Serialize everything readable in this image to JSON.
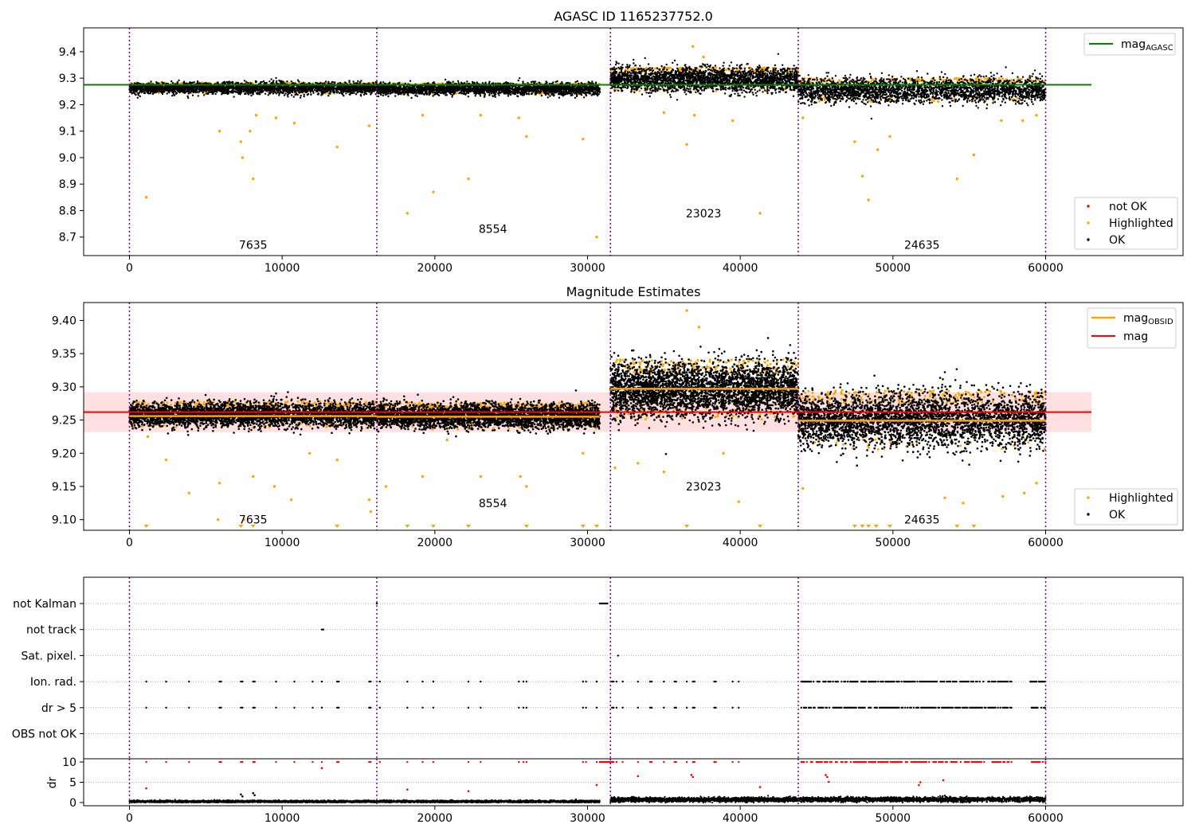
{
  "chart_data": [
    {
      "type": "scatter",
      "title": "AGASC ID 1165237752.0",
      "xlabel": "",
      "ylabel": "",
      "xlim": [
        -3000,
        69000
      ],
      "ylim": [
        8.63,
        9.49
      ],
      "x_ticks": [
        0,
        10000,
        20000,
        30000,
        40000,
        50000,
        60000
      ],
      "x_tick_labels": [
        "0",
        "10000",
        "20000",
        "30000",
        "40000",
        "50000",
        "60000"
      ],
      "y_ticks": [
        8.7,
        8.8,
        8.9,
        9.0,
        9.1,
        9.2,
        9.3,
        9.4
      ],
      "y_tick_labels": [
        "8.7",
        "8.8",
        "8.9",
        "9.0",
        "9.1",
        "9.2",
        "9.3",
        "9.4"
      ],
      "boundaries": [
        0,
        16200,
        31500,
        43800,
        60000
      ],
      "segments": [
        {
          "label": "7635",
          "x": [
            0,
            16200
          ],
          "center": 9.262,
          "spread": 0.024,
          "label_at": [
            8100,
            8.67
          ]
        },
        {
          "label": "8554",
          "x": [
            16200,
            30800
          ],
          "center": 9.259,
          "spread": 0.024,
          "label_at": [
            23800,
            8.73
          ]
        },
        {
          "label": "23023",
          "x": [
            31500,
            43800
          ],
          "center": 9.295,
          "spread": 0.05,
          "label_at": [
            37600,
            8.79
          ]
        },
        {
          "label": "24635",
          "x": [
            43800,
            60000
          ],
          "center": 9.255,
          "spread": 0.05,
          "label_at": [
            51900,
            8.67
          ]
        }
      ],
      "reference_line": {
        "name": "mag_AGASC",
        "y": 9.275,
        "x": [
          -3000,
          63000
        ],
        "color": "#008000"
      },
      "highlighted_points": [
        [
          1100,
          8.85
        ],
        [
          5900,
          9.1
        ],
        [
          7300,
          9.06
        ],
        [
          7400,
          9.0
        ],
        [
          8100,
          8.92
        ],
        [
          7900,
          9.1
        ],
        [
          8300,
          9.16
        ],
        [
          9600,
          9.15
        ],
        [
          10800,
          9.13
        ],
        [
          13600,
          9.04
        ],
        [
          15700,
          9.12
        ],
        [
          18200,
          8.79
        ],
        [
          19900,
          8.87
        ],
        [
          22200,
          8.92
        ],
        [
          19200,
          9.16
        ],
        [
          23000,
          9.16
        ],
        [
          25500,
          9.15
        ],
        [
          26000,
          9.08
        ],
        [
          29700,
          9.07
        ],
        [
          30600,
          8.7
        ],
        [
          36500,
          9.05
        ],
        [
          41300,
          8.79
        ],
        [
          35000,
          9.17
        ],
        [
          37000,
          9.16
        ],
        [
          39500,
          9.14
        ],
        [
          44100,
          9.15
        ],
        [
          47500,
          9.06
        ],
        [
          48000,
          8.93
        ],
        [
          48400,
          8.84
        ],
        [
          49000,
          9.03
        ],
        [
          49800,
          9.08
        ],
        [
          54200,
          8.92
        ],
        [
          55300,
          9.01
        ],
        [
          57100,
          9.14
        ],
        [
          58500,
          9.14
        ],
        [
          59400,
          9.16
        ],
        [
          36900,
          9.42
        ],
        [
          37600,
          9.38
        ]
      ],
      "legend": [
        {
          "label": "mag_AGASC",
          "color": "#008000",
          "kind": "line"
        },
        {
          "label": "not OK",
          "color": "#ff0000",
          "kind": "dot"
        },
        {
          "label": "Highlighted",
          "color": "#ffa500",
          "kind": "dot"
        },
        {
          "label": "OK",
          "color": "#000000",
          "kind": "dot"
        }
      ]
    },
    {
      "type": "scatter",
      "title": "Magnitude Estimates",
      "xlabel": "",
      "ylabel": "",
      "xlim": [
        -3000,
        69000
      ],
      "ylim": [
        9.084,
        9.427
      ],
      "x_ticks": [
        0,
        10000,
        20000,
        30000,
        40000,
        50000,
        60000
      ],
      "x_tick_labels": [
        "0",
        "10000",
        "20000",
        "30000",
        "40000",
        "50000",
        "60000"
      ],
      "y_ticks": [
        9.1,
        9.15,
        9.2,
        9.25,
        9.3,
        9.35,
        9.4
      ],
      "y_tick_labels": [
        "9.10",
        "9.15",
        "9.20",
        "9.25",
        "9.30",
        "9.35",
        "9.40"
      ],
      "boundaries": [
        0,
        16200,
        31500,
        43800,
        60000
      ],
      "segments": [
        {
          "label": "7635",
          "x": [
            0,
            16200
          ],
          "center": 9.258,
          "spread": 0.02,
          "mag_obsid": 9.256,
          "label_at": [
            8100,
            9.1
          ]
        },
        {
          "label": "8554",
          "x": [
            16200,
            30800
          ],
          "center": 9.256,
          "spread": 0.02,
          "mag_obsid": 9.255,
          "label_at": [
            23800,
            9.125
          ]
        },
        {
          "label": "23023",
          "x": [
            31500,
            43800
          ],
          "center": 9.296,
          "spread": 0.045,
          "mag_obsid": 9.297,
          "label_at": [
            37600,
            9.15
          ]
        },
        {
          "label": "24635",
          "x": [
            43800,
            60000
          ],
          "center": 9.25,
          "spread": 0.045,
          "mag_obsid": 9.249,
          "label_at": [
            51900,
            9.1
          ]
        }
      ],
      "mag_line": {
        "name": "mag",
        "y": 9.262,
        "band": [
          9.232,
          9.292
        ],
        "x": [
          -3000,
          63000
        ],
        "color": "#ff0000"
      },
      "highlighted_points": [
        [
          1200,
          9.225
        ],
        [
          2400,
          9.19
        ],
        [
          3900,
          9.14
        ],
        [
          5900,
          9.155
        ],
        [
          5800,
          9.1
        ],
        [
          7500,
          9.1
        ],
        [
          8100,
          9.165
        ],
        [
          9500,
          9.15
        ],
        [
          10600,
          9.13
        ],
        [
          11800,
          9.2
        ],
        [
          13600,
          9.19
        ],
        [
          15700,
          9.13
        ],
        [
          15800,
          9.112
        ],
        [
          16800,
          9.15
        ],
        [
          19200,
          9.165
        ],
        [
          20800,
          9.22
        ],
        [
          23000,
          9.165
        ],
        [
          25600,
          9.165
        ],
        [
          26000,
          9.15
        ],
        [
          29700,
          9.2
        ],
        [
          33300,
          9.185
        ],
        [
          31800,
          9.178
        ],
        [
          35000,
          9.172
        ],
        [
          38900,
          9.2
        ],
        [
          39900,
          9.127
        ],
        [
          44100,
          9.147
        ],
        [
          54600,
          9.125
        ],
        [
          53400,
          9.133
        ],
        [
          57200,
          9.135
        ],
        [
          59400,
          9.155
        ],
        [
          36500,
          9.415
        ],
        [
          37300,
          9.39
        ],
        [
          58600,
          9.14
        ]
      ],
      "lower_markers_x": [
        1100,
        7300,
        8100,
        13600,
        18200,
        19900,
        22200,
        26000,
        29700,
        30600,
        36500,
        41300,
        47500,
        48000,
        48400,
        48900,
        49800,
        54200,
        55300
      ],
      "legend": [
        {
          "label": "mag_OBSID",
          "color": "#ffa500",
          "kind": "line"
        },
        {
          "label": "mag",
          "color": "#ff0000",
          "kind": "line"
        },
        {
          "label": "Highlighted",
          "color": "#ffa500",
          "kind": "dot"
        },
        {
          "label": "OK",
          "color": "#000000",
          "kind": "dot"
        }
      ]
    },
    {
      "type": "scatter",
      "title": "",
      "xlabel": "",
      "ylabel": "",
      "xlim": [
        -3000,
        69000
      ],
      "categories": [
        "not Kalman",
        "not track",
        "Sat. pixel.",
        "Ion. rad.",
        "dr > 5",
        "OBS not OK"
      ],
      "boundaries": [
        0,
        16200,
        31500,
        43800,
        60000
      ],
      "flag_events": {
        "not Kalman": [
          16200,
          30800,
          30900,
          31000,
          31100,
          31200,
          31300
        ],
        "not track": [
          12600,
          12700
        ],
        "Sat. pixel.": [
          32000
        ],
        "Ion. rad.": [
          1100,
          2400,
          3900,
          5900,
          6000,
          7300,
          7400,
          8100,
          8200,
          9600,
          10800,
          12000,
          12600,
          13600,
          13700,
          15700,
          15800,
          16400,
          18200,
          19200,
          19900,
          22200,
          23000,
          25500,
          25800,
          26000,
          29700,
          29900,
          30600,
          31600,
          31700,
          31900,
          32300,
          33300,
          34100,
          34200,
          35000,
          35700,
          35800,
          36500,
          36900,
          37000,
          38300,
          38400,
          39500,
          39900
        ],
        "dr > 5": [
          1100,
          2400,
          3900,
          5900,
          6000,
          7300,
          7400,
          8100,
          8200,
          9600,
          10800,
          12000,
          12600,
          13600,
          13700,
          15700,
          15800,
          16400,
          18200,
          19200,
          19900,
          22200,
          23000,
          25500,
          25800,
          26000,
          29700,
          29900,
          30600,
          31600,
          31700,
          31900,
          32300,
          33300,
          34100,
          34200,
          35000,
          35700,
          35800,
          36500,
          36900,
          37000,
          38300,
          38400,
          39500,
          39900
        ],
        "OBS not OK": []
      },
      "dense_flag_ranges": {
        "Ion. rad.": [
          [
            44000,
            57800
          ],
          [
            59000,
            60000
          ]
        ],
        "dr > 5": [
          [
            44000,
            57800
          ],
          [
            59000,
            60000
          ]
        ]
      }
    },
    {
      "type": "scatter",
      "title": "",
      "xlabel": "",
      "ylabel": "dr",
      "xlim": [
        -3000,
        69000
      ],
      "ylim": [
        -0.8,
        10.8
      ],
      "x_ticks": [
        0,
        10000,
        20000,
        30000,
        40000,
        50000,
        60000
      ],
      "x_tick_labels": [
        "0",
        "10000",
        "20000",
        "30000",
        "40000",
        "50000",
        "60000"
      ],
      "y_ticks": [
        0,
        5,
        10
      ],
      "y_tick_labels": [
        "0",
        "5",
        "10"
      ],
      "boundaries": [
        0,
        16200,
        31500,
        43800,
        60000
      ],
      "base_levels": [
        {
          "x": [
            0,
            16200
          ],
          "center": 0.25,
          "spread": 0.25
        },
        {
          "x": [
            16200,
            30800
          ],
          "center": 0.25,
          "spread": 0.25
        },
        {
          "x": [
            31500,
            43800
          ],
          "center": 0.7,
          "spread": 0.5
        },
        {
          "x": [
            43800,
            60000
          ],
          "center": 0.75,
          "spread": 0.55
        }
      ],
      "outlier_points_red": [
        [
          1100,
          3.5
        ],
        [
          12600,
          8.5
        ],
        [
          18200,
          3.2
        ],
        [
          22200,
          2.8
        ],
        [
          30600,
          4.3
        ],
        [
          33300,
          6.5
        ],
        [
          36800,
          6.8
        ],
        [
          36900,
          6.3
        ],
        [
          41300,
          3.8
        ],
        [
          45600,
          6.8
        ],
        [
          45700,
          6.3
        ],
        [
          45800,
          5.1
        ],
        [
          51800,
          5.0
        ],
        [
          51700,
          4.3
        ],
        [
          53300,
          5.5
        ]
      ],
      "outlier_points_black": [
        [
          7300,
          2.0
        ],
        [
          8100,
          2.3
        ],
        [
          7400,
          1.5
        ],
        [
          8200,
          1.8
        ]
      ],
      "capped_value": 10
    }
  ]
}
